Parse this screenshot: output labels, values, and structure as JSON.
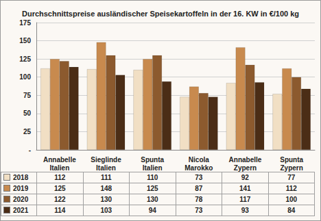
{
  "chart_data": {
    "type": "bar",
    "title": "Durchschnittspreise ausländischer Speisekartoffeln in der 16. KW in €/100 kg",
    "categories": [
      "Annabelle\nItalien",
      "Sieglinde\nItalien",
      "Spunta\nItalien",
      "Nicola\nMarokko",
      "Annabelle\nZypern",
      "Spunta\nZypern"
    ],
    "series": [
      {
        "name": "2018",
        "color": "#f1dfc4",
        "values": [
          112,
          111,
          110,
          73,
          92,
          77
        ]
      },
      {
        "name": "2019",
        "color": "#c88a4e",
        "values": [
          125,
          148,
          125,
          87,
          141,
          112
        ]
      },
      {
        "name": "2020",
        "color": "#8c5a2e",
        "values": [
          122,
          130,
          130,
          78,
          117,
          100
        ]
      },
      {
        "name": "2021",
        "color": "#4b2d16",
        "values": [
          114,
          103,
          94,
          73,
          93,
          84
        ]
      }
    ],
    "ylim": [
      0,
      175
    ],
    "yticks": [
      {
        "value": 0,
        "label": "-"
      },
      25,
      50,
      75,
      100,
      125,
      150,
      175
    ],
    "grid": true
  }
}
